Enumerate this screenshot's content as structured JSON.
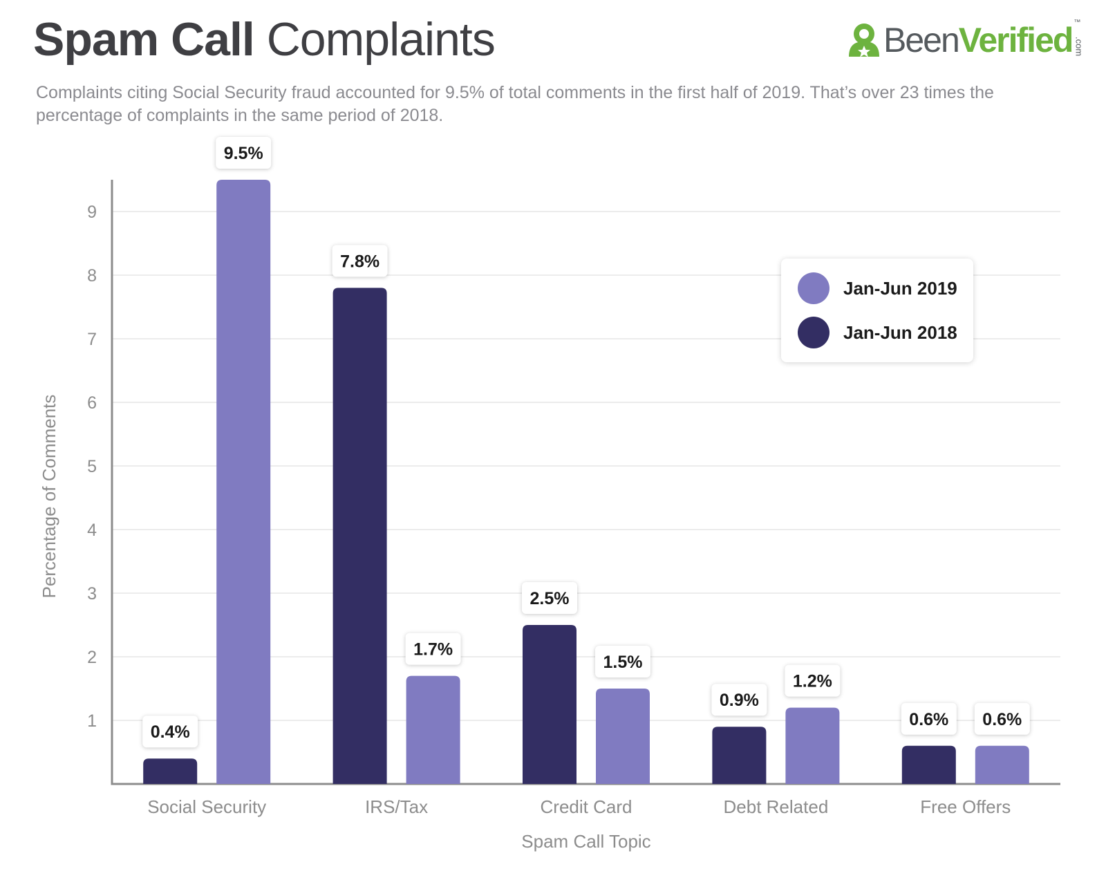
{
  "header": {
    "title_bold": "Spam Call",
    "title_light": "Complaints",
    "subtitle": "Complaints citing Social Security fraud accounted for 9.5% of total comments in the first half of 2019. That’s over 23 times the percentage of complaints in the same period of 2018."
  },
  "logo": {
    "text_been": "Been",
    "text_verified": "Verified",
    "text_com": ".com",
    "tm": "™",
    "icon": "person-star-icon",
    "colors": {
      "green": "#6db33f",
      "gray": "#555a5e"
    }
  },
  "chart_data": {
    "type": "bar",
    "xlabel": "Spam Call Topic",
    "ylabel": "Percentage of Comments",
    "ylim": [
      0,
      9.5
    ],
    "yticks": [
      1,
      2,
      3,
      4,
      5,
      6,
      7,
      8,
      9
    ],
    "grid": true,
    "legend_position": "top-right",
    "categories": [
      "Social Security",
      "IRS/Tax",
      "Credit Card",
      "Debt Related",
      "Free Offers"
    ],
    "series": [
      {
        "name": "Jan-Jun 2018",
        "color": "#332e63",
        "values": [
          0.4,
          7.8,
          2.5,
          0.9,
          0.6
        ],
        "labels": [
          "0.4%",
          "7.8%",
          "2.5%",
          "0.9%",
          "0.6%"
        ]
      },
      {
        "name": "Jan-Jun 2019",
        "color": "#807bc1",
        "values": [
          9.5,
          1.7,
          1.5,
          1.2,
          0.6
        ],
        "labels": [
          "9.5%",
          "1.7%",
          "1.5%",
          "1.2%",
          "0.6%"
        ]
      }
    ],
    "colors": {
      "axis": "#8c8c8c",
      "grid": "#e6e6e6",
      "tick_text": "#8c8c8c",
      "label_text": "#1a1a1a"
    }
  }
}
